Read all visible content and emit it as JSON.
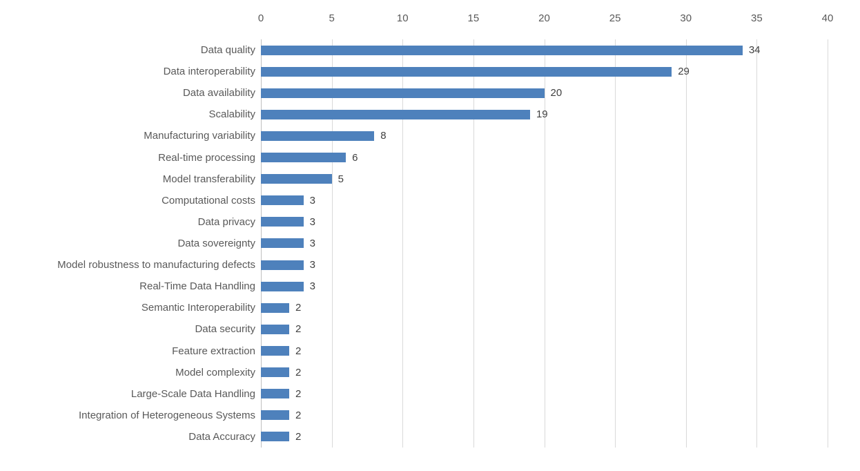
{
  "chart_data": {
    "type": "bar",
    "orientation": "horizontal",
    "title": "",
    "xlabel": "",
    "ylabel": "",
    "xlim": [
      0,
      40
    ],
    "x_ticks": [
      0,
      5,
      10,
      15,
      20,
      25,
      30,
      35,
      40
    ],
    "axis_position": "top",
    "grid": "vertical",
    "legend": "none",
    "data_labels": true,
    "categories": [
      "Data quality",
      "Data interoperability",
      "Data availability",
      "Scalability",
      "Manufacturing variability",
      "Real-time processing",
      "Model transferability",
      "Computational costs",
      "Data privacy",
      "Data sovereignty",
      "Model robustness to manufacturing defects",
      "Real-Time Data Handling",
      "Semantic Interoperability",
      "Data security",
      "Feature extraction",
      "Model complexity",
      "Large-Scale Data Handling",
      "Integration of Heterogeneous Systems",
      "Data Accuracy"
    ],
    "values": [
      34,
      29,
      20,
      19,
      8,
      6,
      5,
      3,
      3,
      3,
      3,
      3,
      2,
      2,
      2,
      2,
      2,
      2,
      2
    ],
    "colors": {
      "bar": "#4e81bc",
      "gridline": "#d9d9d9",
      "axis_line": "#bfbfbf",
      "tick_label": "#595959",
      "category_label": "#595959",
      "value_label": "#404040",
      "background": "#ffffff"
    }
  }
}
